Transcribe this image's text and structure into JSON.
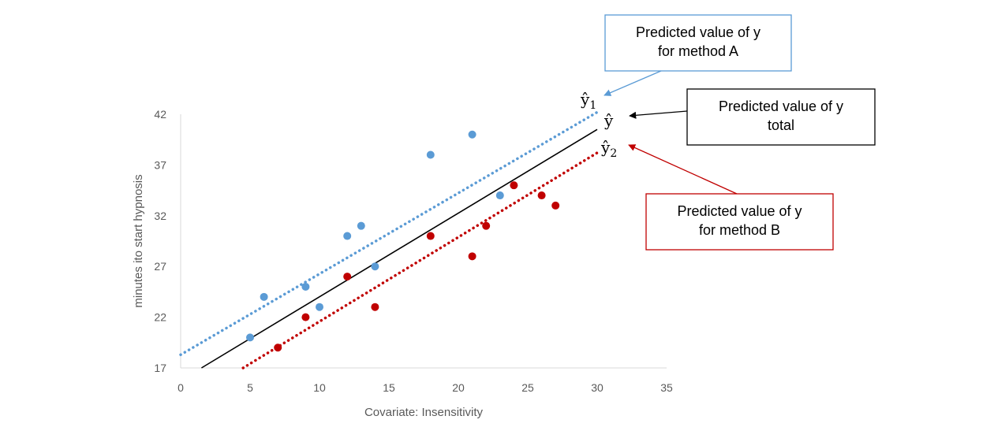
{
  "chart_data": {
    "type": "scatter",
    "xlabel": "Covariate: Insensitivity",
    "ylabel": "minutes ito start  hypnosis",
    "xlim": [
      0,
      35
    ],
    "ylim": [
      17,
      42
    ],
    "x_ticks": [
      0,
      5,
      10,
      15,
      20,
      25,
      30,
      35
    ],
    "y_ticks": [
      17,
      22,
      27,
      32,
      37,
      42
    ],
    "grid": false,
    "series": [
      {
        "color": "#5b9bd5",
        "points": [
          [
            5,
            20
          ],
          [
            6,
            24
          ],
          [
            9,
            25
          ],
          [
            10,
            23
          ],
          [
            12,
            30
          ],
          [
            13,
            31
          ],
          [
            14,
            27
          ],
          [
            18,
            38
          ],
          [
            21,
            40
          ],
          [
            23,
            34
          ]
        ]
      },
      {
        "color": "#c00000",
        "points": [
          [
            7,
            19
          ],
          [
            9,
            22
          ],
          [
            12,
            26
          ],
          [
            14,
            23
          ],
          [
            18,
            30
          ],
          [
            21,
            28
          ],
          [
            22,
            31
          ],
          [
            24,
            35
          ],
          [
            26,
            34
          ],
          [
            27,
            33
          ]
        ]
      }
    ],
    "lines": [
      {
        "id": "method-a",
        "label": "ŷ",
        "subscript": "1",
        "color": "#5b9bd5",
        "style": "dotted",
        "x": [
          0,
          30
        ],
        "y": [
          18.3,
          42.2
        ]
      },
      {
        "id": "total",
        "label": "ŷ",
        "subscript": "",
        "color": "#000000",
        "style": "solid",
        "x": [
          1.5,
          30
        ],
        "y": [
          17,
          40.5
        ]
      },
      {
        "id": "method-b",
        "label": "ŷ",
        "subscript": "2",
        "color": "#c00000",
        "style": "dotted",
        "x": [
          4.5,
          30
        ],
        "y": [
          17,
          38.2
        ]
      }
    ],
    "annotations": [
      {
        "id": "callout-a",
        "lines": [
          "Predicted value of y",
          "for method A"
        ],
        "border": "#5b9bd5"
      },
      {
        "id": "callout-total",
        "lines": [
          "Predicted value of y",
          "total"
        ],
        "border": "#000000"
      },
      {
        "id": "callout-b",
        "lines": [
          "Predicted value of y",
          "for method B"
        ],
        "border": "#c00000"
      }
    ]
  }
}
